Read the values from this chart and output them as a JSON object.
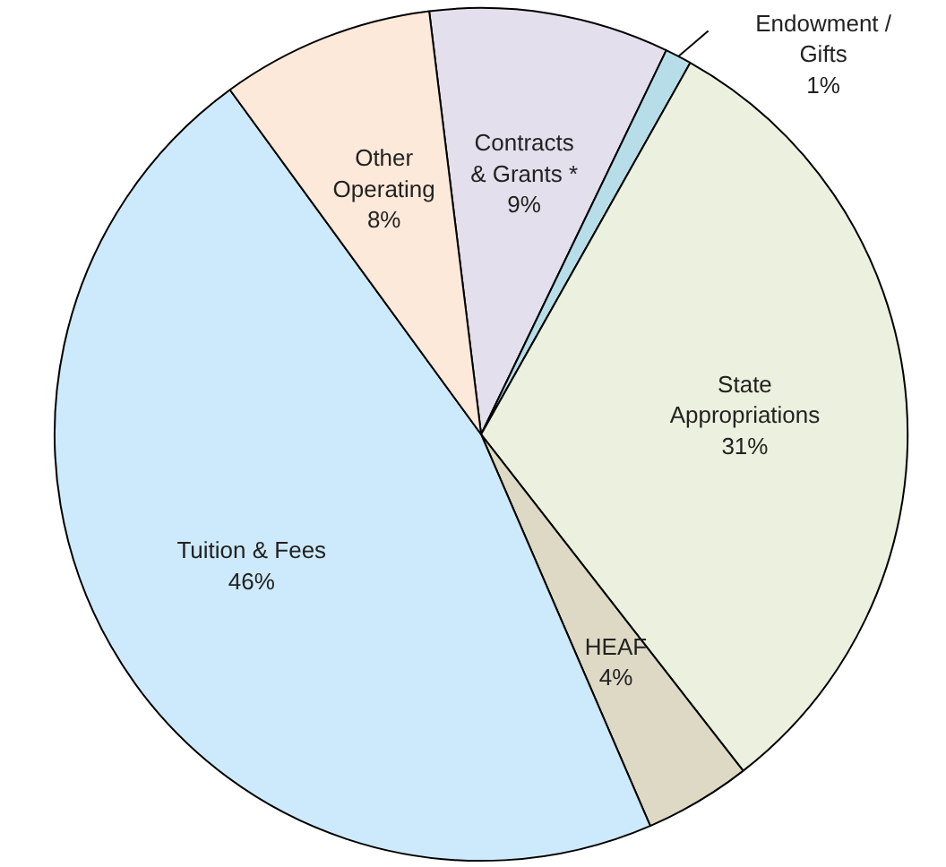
{
  "chart_data": {
    "type": "pie",
    "categories": [
      "Contracts\n& Grants *",
      "Endowment /\nGifts",
      "State\nAppropriations",
      "HEAF",
      "Tuition & Fees",
      "Other\nOperating"
    ],
    "values": [
      9,
      1,
      31,
      4,
      46,
      8
    ],
    "value_labels": [
      "9%",
      "1%",
      "31%",
      "4%",
      "46%",
      "8%"
    ],
    "colors": [
      "#e4dfec",
      "#b7dee8",
      "#ebf1de",
      "#ddd9c4",
      "#cdeafc",
      "#fde9d9"
    ]
  }
}
